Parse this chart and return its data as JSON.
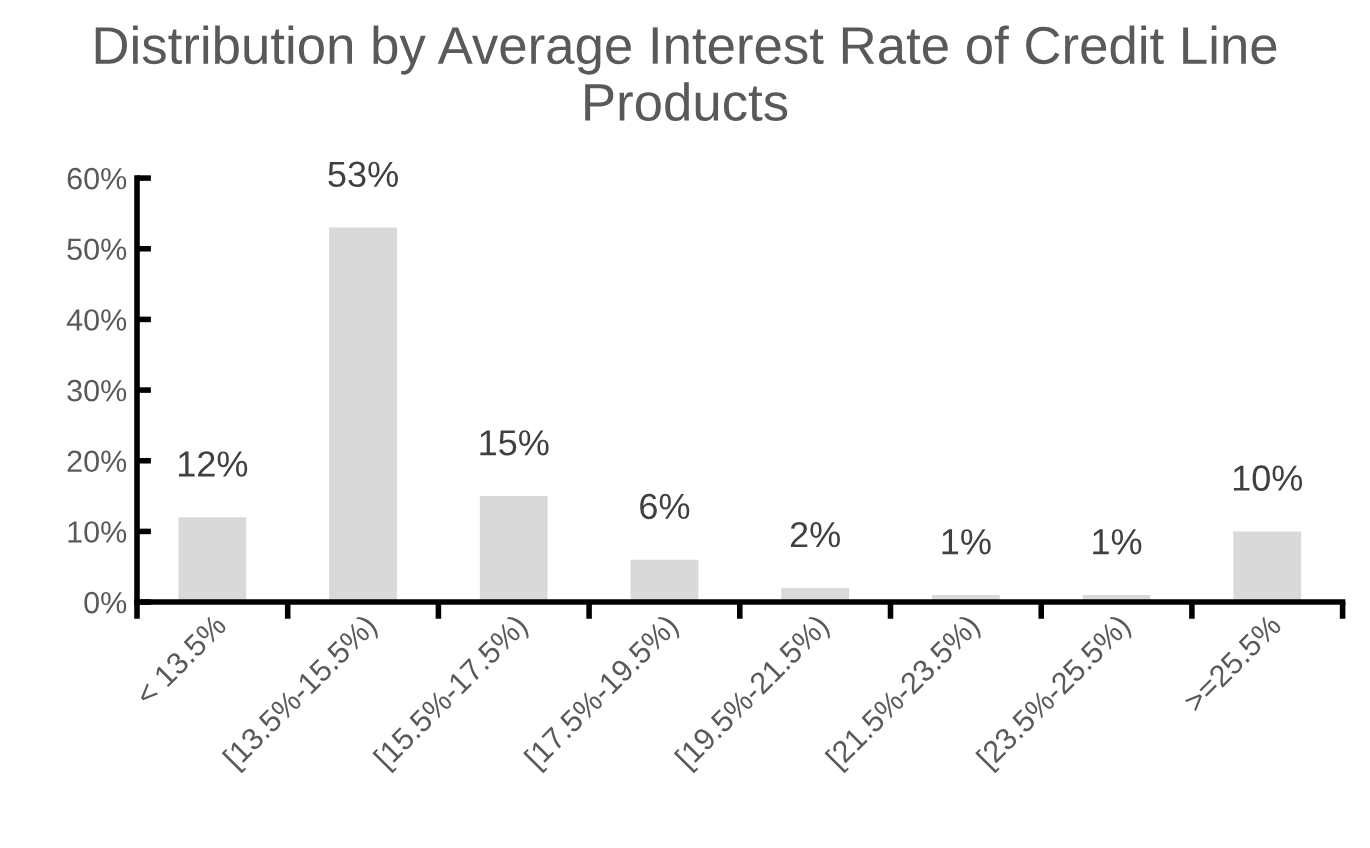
{
  "chart_data": {
    "type": "bar",
    "title": "Distribution by Average Interest Rate of Credit Line Products",
    "categories": [
      "< 13.5%",
      "[13.5%-15.5%)",
      "[15.5%-17.5%)",
      "[17.5%-19.5%)",
      "[19.5%-21.5%)",
      "[21.5%-23.5%)",
      "[23.5%-25.5%)",
      ">=25.5%"
    ],
    "values": [
      12,
      53,
      15,
      6,
      2,
      1,
      1,
      10
    ],
    "value_labels": [
      "12%",
      "53%",
      "15%",
      "6%",
      "2%",
      "1%",
      "1%",
      "10%"
    ],
    "color": "#d9d9d9",
    "ylim": [
      0,
      60
    ],
    "yticks": [
      {
        "value": 0,
        "label": "0%"
      },
      {
        "value": 10,
        "label": "10%"
      },
      {
        "value": 20,
        "label": "20%"
      },
      {
        "value": 30,
        "label": "30%"
      },
      {
        "value": 40,
        "label": "40%"
      },
      {
        "value": 50,
        "label": "50%"
      },
      {
        "value": 60,
        "label": "60%"
      }
    ],
    "grid": false,
    "legend": false
  }
}
